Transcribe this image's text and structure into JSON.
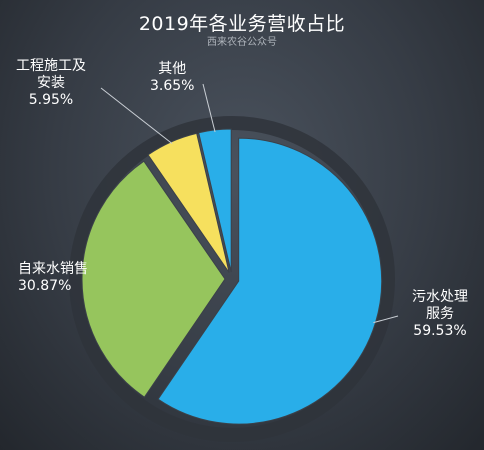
{
  "chart_data": {
    "type": "pie",
    "title": "2019年各业务营收占比",
    "subtitle": "西来农谷公众号",
    "slices": [
      {
        "name_lines": [
          "污水处理",
          "服务"
        ],
        "value": 59.53,
        "label": "59.53%",
        "color": "#29aee9"
      },
      {
        "name_lines": [
          "自来水销售"
        ],
        "value": 30.87,
        "label": "30.87%",
        "color": "#96c55d"
      },
      {
        "name_lines": [
          "工程施工及",
          "安装"
        ],
        "value": 5.95,
        "label": "5.95%",
        "color": "#f6e05e"
      },
      {
        "name_lines": [
          "其他"
        ],
        "value": 3.65,
        "label": "3.65%",
        "color": "#29aee9"
      }
    ]
  }
}
